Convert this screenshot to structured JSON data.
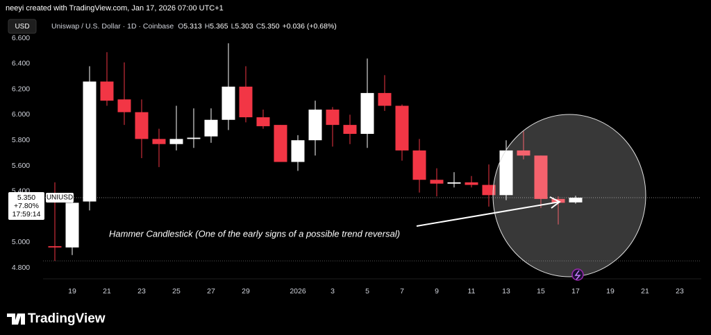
{
  "header": {
    "attribution": "neeyi created with TradingView.com, Jan 17, 2026 07:00 UTC+1",
    "currency_button": "USD"
  },
  "legend": {
    "symbol": "Uniswap / U.S. Dollar · 1D · Coinbase",
    "fields": [
      {
        "key": "O",
        "value": "5.313"
      },
      {
        "key": "H",
        "value": "5.365"
      },
      {
        "key": "L",
        "value": "5.303"
      },
      {
        "key": "C",
        "value": "5.350"
      }
    ],
    "change": "+0.036 (+0.68%)"
  },
  "chart_data": {
    "type": "candlestick",
    "categories": [
      null,
      "19",
      null,
      "21",
      null,
      "23",
      null,
      "25",
      null,
      "27",
      null,
      "29",
      null,
      null,
      "2026",
      null,
      "3",
      null,
      "5",
      null,
      "7",
      null,
      "9",
      null,
      "11",
      null,
      "13",
      null,
      "15",
      null,
      "17",
      null,
      "19",
      null,
      "21",
      null,
      "23"
    ],
    "open": [
      4.97,
      4.96,
      5.32,
      6.26,
      6.12,
      6.02,
      5.81,
      5.77,
      5.81,
      5.83,
      5.96,
      6.22,
      5.98,
      5.92,
      5.63,
      5.8,
      6.04,
      5.92,
      5.85,
      6.17,
      6.07,
      5.72,
      5.49,
      5.46,
      5.47,
      5.45,
      5.37,
      5.72,
      5.68,
      5.34,
      5.313,
      null,
      null,
      null,
      null,
      null,
      null
    ],
    "high": [
      5.47,
      5.35,
      6.38,
      6.49,
      6.41,
      6.12,
      5.89,
      6.07,
      6.05,
      6.05,
      6.56,
      6.38,
      6.04,
      5.92,
      5.84,
      6.11,
      6.06,
      6.0,
      6.44,
      6.31,
      6.08,
      5.81,
      5.58,
      5.55,
      5.52,
      5.61,
      5.8,
      5.87,
      5.68,
      5.36,
      5.365,
      null,
      null,
      null,
      null,
      null,
      null
    ],
    "low": [
      4.855,
      4.9,
      5.25,
      6.07,
      5.92,
      5.66,
      5.59,
      5.72,
      5.74,
      5.78,
      5.88,
      5.94,
      5.89,
      5.63,
      5.56,
      5.68,
      5.75,
      5.77,
      5.74,
      6.03,
      5.64,
      5.39,
      5.36,
      5.43,
      5.43,
      5.28,
      5.33,
      5.65,
      5.27,
      5.14,
      5.303,
      null,
      null,
      null,
      null,
      null,
      null
    ],
    "close": [
      4.96,
      5.31,
      6.26,
      6.11,
      6.02,
      5.81,
      5.77,
      5.81,
      5.82,
      5.96,
      6.22,
      5.98,
      5.91,
      5.63,
      5.8,
      6.04,
      5.92,
      5.85,
      6.17,
      6.07,
      5.72,
      5.49,
      5.46,
      5.47,
      5.45,
      5.37,
      5.72,
      5.68,
      5.34,
      5.31,
      5.35,
      null,
      null,
      null,
      null,
      null,
      null
    ],
    "up_color": "#ffffff",
    "down_color": "#f23645",
    "ylim": [
      4.725,
      6.638
    ],
    "yticks": [
      {
        "value": 6.6,
        "label": "6.600"
      },
      {
        "value": 6.4,
        "label": "6.400"
      },
      {
        "value": 6.2,
        "label": "6.200"
      },
      {
        "value": 6.0,
        "label": "6.000"
      },
      {
        "value": 5.8,
        "label": "5.800"
      },
      {
        "value": 5.6,
        "label": "5.600"
      },
      {
        "value": 5.4,
        "label": "5.400"
      },
      {
        "value": 5.0,
        "label": "5.000"
      },
      {
        "value": 4.8,
        "label": "4.800"
      }
    ],
    "last_price": {
      "value": 5.35,
      "label": "5.350",
      "change": "+7.80%",
      "countdown": "17:59:14",
      "symbol": "UNIUSD"
    },
    "annotation": "Hammer Candlestick (One of the early signs of a possible trend reversal)"
  },
  "footer": {
    "logo": "TradingView"
  }
}
